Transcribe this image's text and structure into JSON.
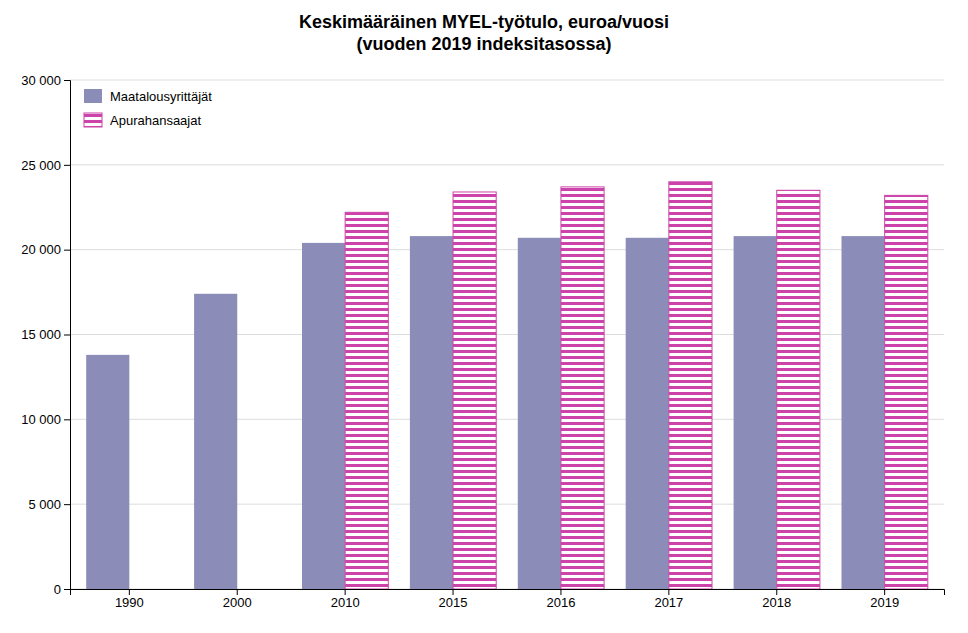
{
  "chart_data": {
    "type": "bar",
    "title": "Keskimääräinen MYEL-työtulo, euroa/vuosi\n(vuoden 2019 indeksitasossa)",
    "categories": [
      "1990",
      "2000",
      "2010",
      "2015",
      "2016",
      "2017",
      "2018",
      "2019"
    ],
    "series": [
      {
        "name": "Maatalousyrittäjät",
        "color": "#8B8DB8",
        "values": [
          13800,
          17400,
          20400,
          20800,
          20700,
          20700,
          20800,
          20800
        ]
      },
      {
        "name": "Apurahansaajat",
        "color": "#CC44AA",
        "values": [
          null,
          null,
          22200,
          23400,
          23700,
          24000,
          23500,
          23200
        ]
      }
    ],
    "ylim": [
      0,
      30000
    ],
    "yticks": [
      0,
      {
        "value": 5000,
        "label": "5 000"
      },
      {
        "value": 10000,
        "label": "10 000"
      },
      {
        "value": 15000,
        "label": "15 000"
      },
      {
        "value": 20000,
        "label": "20 000"
      },
      {
        "value": 25000,
        "label": "25 000"
      },
      {
        "value": 30000,
        "label": "30 000"
      }
    ],
    "grid": true,
    "legend": "upper left"
  }
}
